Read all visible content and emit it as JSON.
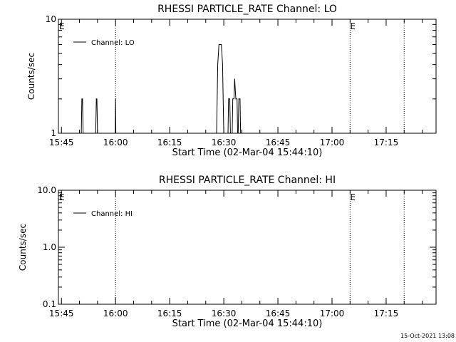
{
  "footer": {
    "timestamp": "15-Oct-2021 13:08"
  },
  "chart_data": [
    {
      "type": "line",
      "title": "RHESSI PARTICLE_RATE Channel: LO",
      "xlabel": "Start Time (02-Mar-04 15:44:10)",
      "ylabel": "Counts/sec",
      "y_scale": "log",
      "ylim": [
        1,
        10
      ],
      "xlim": [
        "15:44:10",
        "17:28:50"
      ],
      "x_ticks": [
        "15:45",
        "16:00",
        "16:15",
        "16:30",
        "16:45",
        "17:00",
        "17:15"
      ],
      "y_ticks": [
        "1",
        "10"
      ],
      "legend": {
        "position": "top-left",
        "entries": [
          "Channel: LO"
        ]
      },
      "markers": [
        {
          "time": "16:00",
          "label": ""
        },
        {
          "time": "17:05",
          "label": "E"
        },
        {
          "time": "17:20",
          "label": ""
        }
      ],
      "edge_label": "E",
      "series": [
        {
          "name": "Channel: LO",
          "points": [
            [
              "15:50:30",
              1
            ],
            [
              "15:50:40",
              2
            ],
            [
              "15:50:50",
              2
            ],
            [
              "15:51:00",
              1
            ],
            [
              "15:54:30",
              1
            ],
            [
              "15:54:40",
              2
            ],
            [
              "15:54:50",
              2
            ],
            [
              "15:55:00",
              1
            ],
            [
              "15:59:55",
              1
            ],
            [
              "16:00:00",
              2
            ],
            [
              "16:00:05",
              1
            ],
            [
              "16:28:00",
              1
            ],
            [
              "16:28:20",
              4
            ],
            [
              "16:28:40",
              6
            ],
            [
              "16:29:20",
              6
            ],
            [
              "16:29:40",
              4
            ],
            [
              "16:29:50",
              2
            ],
            [
              "16:30:00",
              1
            ],
            [
              "16:31:10",
              1
            ],
            [
              "16:31:20",
              2
            ],
            [
              "16:31:40",
              2
            ],
            [
              "16:31:50",
              1
            ],
            [
              "16:32:20",
              1
            ],
            [
              "16:32:30",
              2
            ],
            [
              "16:32:50",
              2
            ],
            [
              "16:33:00",
              3
            ],
            [
              "16:33:20",
              2
            ],
            [
              "16:33:40",
              2
            ],
            [
              "16:33:50",
              1
            ],
            [
              "16:34:00",
              1
            ],
            [
              "16:34:10",
              2
            ],
            [
              "16:34:30",
              2
            ],
            [
              "16:34:40",
              1
            ]
          ]
        }
      ]
    },
    {
      "type": "line",
      "title": "RHESSI PARTICLE_RATE Channel: HI",
      "xlabel": "Start Time (02-Mar-04 15:44:10)",
      "ylabel": "Counts/sec",
      "y_scale": "log",
      "ylim": [
        0.1,
        10
      ],
      "xlim": [
        "15:44:10",
        "17:28:50"
      ],
      "x_ticks": [
        "15:45",
        "16:00",
        "16:15",
        "16:30",
        "16:45",
        "17:00",
        "17:15"
      ],
      "y_ticks": [
        "0.1",
        "1.0",
        "10.0"
      ],
      "legend": {
        "position": "top-left",
        "entries": [
          "Channel: HI"
        ]
      },
      "markers": [
        {
          "time": "16:00",
          "label": ""
        },
        {
          "time": "17:05",
          "label": "E"
        },
        {
          "time": "17:20",
          "label": ""
        }
      ],
      "edge_label": "E",
      "series": [
        {
          "name": "Channel: HI",
          "points": []
        }
      ]
    }
  ]
}
